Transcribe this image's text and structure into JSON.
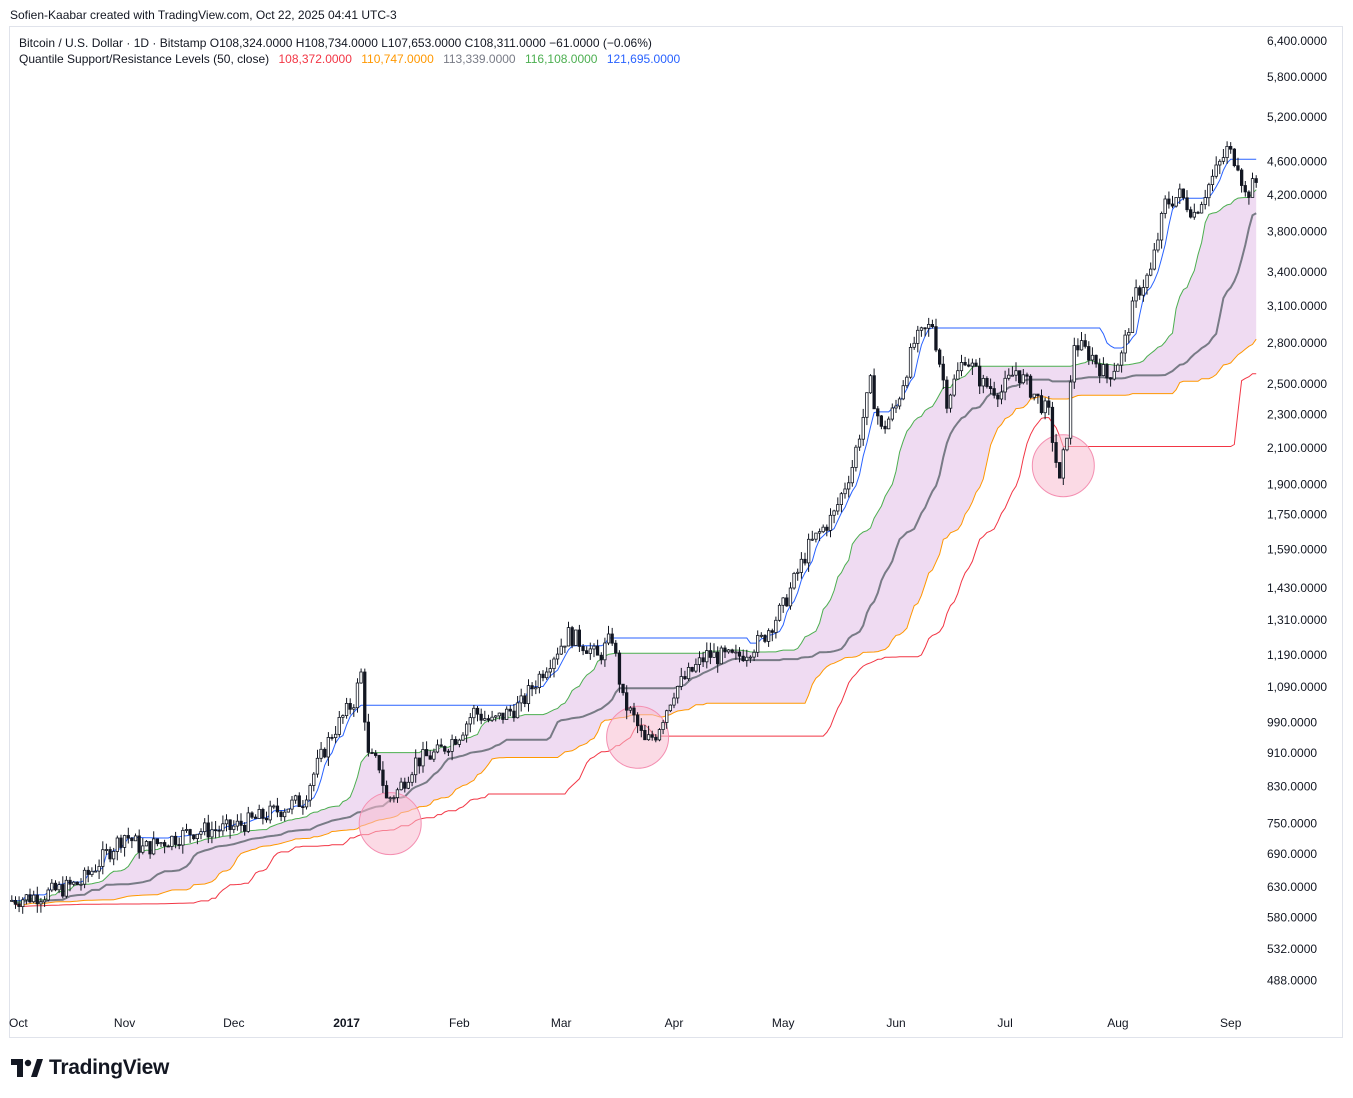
{
  "header": {
    "credit": "Sofien-Kaabar created with TradingView.com, Oct 22, 2025 04:41 UTC-3"
  },
  "legend": {
    "symbol": "Bitcoin / U.S. Dollar · 1D · Bitstamp",
    "ohlc": "O108,324.0000  H108,734.0000  L107,653.0000  C108,311.0000  −61.0000 (−0.06%)",
    "indicator": "Quantile Support/Resistance Levels (50, close)",
    "values": [
      {
        "text": "108,372.0000",
        "color": "#f23645"
      },
      {
        "text": "110,747.0000",
        "color": "#ff9800"
      },
      {
        "text": "113,339.0000",
        "color": "#787b86"
      },
      {
        "text": "116,108.0000",
        "color": "#4caf50"
      },
      {
        "text": "121,695.0000",
        "color": "#2962ff"
      }
    ]
  },
  "brand": {
    "name": "TradingView"
  },
  "colors": {
    "candle": "#131722",
    "q05": "#f23645",
    "q25": "#ff9800",
    "q50": "#787b86",
    "q75": "#4caf50",
    "q95": "#2962ff",
    "band_fill": "#e1bee7",
    "circle_fill": "#f8bbd0",
    "circle_stroke": "#f48fb1"
  },
  "chart_data": {
    "type": "candlestick",
    "y_scale": "log",
    "yticks": [
      "6,400.0000",
      "5,800.0000",
      "5,200.0000",
      "4,600.0000",
      "4,200.0000",
      "3,800.0000",
      "3,400.0000",
      "3,100.0000",
      "2,800.0000",
      "2,500.0000",
      "2,300.0000",
      "2,100.0000",
      "1,900.0000",
      "1,750.0000",
      "1,590.0000",
      "1,430.0000",
      "1,310.0000",
      "1,190.0000",
      "1,090.0000",
      "990.0000",
      "910.0000",
      "830.0000",
      "750.0000",
      "690.0000",
      "630.0000",
      "580.0000",
      "532.0000",
      "488.0000"
    ],
    "ytick_values": [
      6400,
      5800,
      5200,
      4600,
      4200,
      3800,
      3400,
      3100,
      2800,
      2500,
      2300,
      2100,
      1900,
      1750,
      1590,
      1430,
      1310,
      1190,
      1090,
      990,
      910,
      830,
      750,
      690,
      630,
      580,
      532,
      488
    ],
    "ylim": [
      450,
      6600
    ],
    "xticks": [
      {
        "label": "Oct",
        "date": "2016-10-01"
      },
      {
        "label": "Nov",
        "date": "2016-11-01"
      },
      {
        "label": "Dec",
        "date": "2016-12-01"
      },
      {
        "label": "2017",
        "date": "2017-01-01"
      },
      {
        "label": "Feb",
        "date": "2017-02-01"
      },
      {
        "label": "Mar",
        "date": "2017-03-01"
      },
      {
        "label": "Apr",
        "date": "2017-04-01"
      },
      {
        "label": "May",
        "date": "2017-05-01"
      },
      {
        "label": "Jun",
        "date": "2017-06-01"
      },
      {
        "label": "Jul",
        "date": "2017-07-01"
      },
      {
        "label": "Aug",
        "date": "2017-08-01"
      },
      {
        "label": "Sep",
        "date": "2017-09-01"
      }
    ],
    "x_start": "2016-10-01",
    "x_end": "2017-09-08",
    "close_keypoints": [
      [
        "2016-10-01",
        608
      ],
      [
        "2016-10-10",
        618
      ],
      [
        "2016-10-20",
        638
      ],
      [
        "2016-10-27",
        690
      ],
      [
        "2016-11-01",
        728
      ],
      [
        "2016-11-06",
        700
      ],
      [
        "2016-11-12",
        715
      ],
      [
        "2016-11-20",
        735
      ],
      [
        "2016-11-30",
        740
      ],
      [
        "2016-12-10",
        768
      ],
      [
        "2016-12-20",
        800
      ],
      [
        "2016-12-24",
        880
      ],
      [
        "2016-12-28",
        960
      ],
      [
        "2017-01-03",
        1050
      ],
      [
        "2017-01-05",
        1130
      ],
      [
        "2017-01-07",
        900
      ],
      [
        "2017-01-10",
        880
      ],
      [
        "2017-01-12",
        800
      ],
      [
        "2017-01-15",
        820
      ],
      [
        "2017-01-20",
        890
      ],
      [
        "2017-01-26",
        910
      ],
      [
        "2017-02-01",
        960
      ],
      [
        "2017-02-05",
        1020
      ],
      [
        "2017-02-10",
        990
      ],
      [
        "2017-02-18",
        1040
      ],
      [
        "2017-02-25",
        1160
      ],
      [
        "2017-03-03",
        1260
      ],
      [
        "2017-03-08",
        1220
      ],
      [
        "2017-03-11",
        1180
      ],
      [
        "2017-03-15",
        1250
      ],
      [
        "2017-03-18",
        1050
      ],
      [
        "2017-03-21",
        1000
      ],
      [
        "2017-03-24",
        935
      ],
      [
        "2017-03-27",
        960
      ],
      [
        "2017-04-01",
        1080
      ],
      [
        "2017-04-10",
        1190
      ],
      [
        "2017-04-18",
        1180
      ],
      [
        "2017-04-25",
        1240
      ],
      [
        "2017-05-01",
        1360
      ],
      [
        "2017-05-08",
        1600
      ],
      [
        "2017-05-15",
        1750
      ],
      [
        "2017-05-20",
        2000
      ],
      [
        "2017-05-25",
        2500
      ],
      [
        "2017-05-28",
        2200
      ],
      [
        "2017-06-01",
        2350
      ],
      [
        "2017-06-06",
        2800
      ],
      [
        "2017-06-11",
        2950
      ],
      [
        "2017-06-15",
        2400
      ],
      [
        "2017-06-20",
        2700
      ],
      [
        "2017-06-25",
        2500
      ],
      [
        "2017-06-30",
        2450
      ],
      [
        "2017-07-04",
        2600
      ],
      [
        "2017-07-10",
        2400
      ],
      [
        "2017-07-13",
        2300
      ],
      [
        "2017-07-16",
        1900
      ],
      [
        "2017-07-18",
        2200
      ],
      [
        "2017-07-20",
        2800
      ],
      [
        "2017-07-25",
        2700
      ],
      [
        "2017-07-29",
        2550
      ],
      [
        "2017-08-02",
        2700
      ],
      [
        "2017-08-06",
        3200
      ],
      [
        "2017-08-10",
        3400
      ],
      [
        "2017-08-14",
        4100
      ],
      [
        "2017-08-18",
        4200
      ],
      [
        "2017-08-22",
        4000
      ],
      [
        "2017-08-27",
        4400
      ],
      [
        "2017-08-31",
        4750
      ],
      [
        "2017-09-03",
        4600
      ],
      [
        "2017-09-05",
        4200
      ],
      [
        "2017-09-08",
        4350
      ]
    ],
    "bands": {
      "window": 50,
      "quantiles": [
        {
          "name": "q05",
          "q": 0.05,
          "last": "108,372.0000"
        },
        {
          "name": "q25",
          "q": 0.25,
          "last": "110,747.0000"
        },
        {
          "name": "q50",
          "q": 0.5,
          "last": "113,339.0000"
        },
        {
          "name": "q75",
          "q": 0.75,
          "last": "116,108.0000"
        },
        {
          "name": "q95",
          "q": 0.95,
          "last": "121,695.0000"
        }
      ]
    },
    "highlights": [
      {
        "date": "2017-01-13",
        "price": 750
      },
      {
        "date": "2017-03-22",
        "price": 950
      },
      {
        "date": "2017-07-17",
        "price": 2000
      }
    ]
  }
}
